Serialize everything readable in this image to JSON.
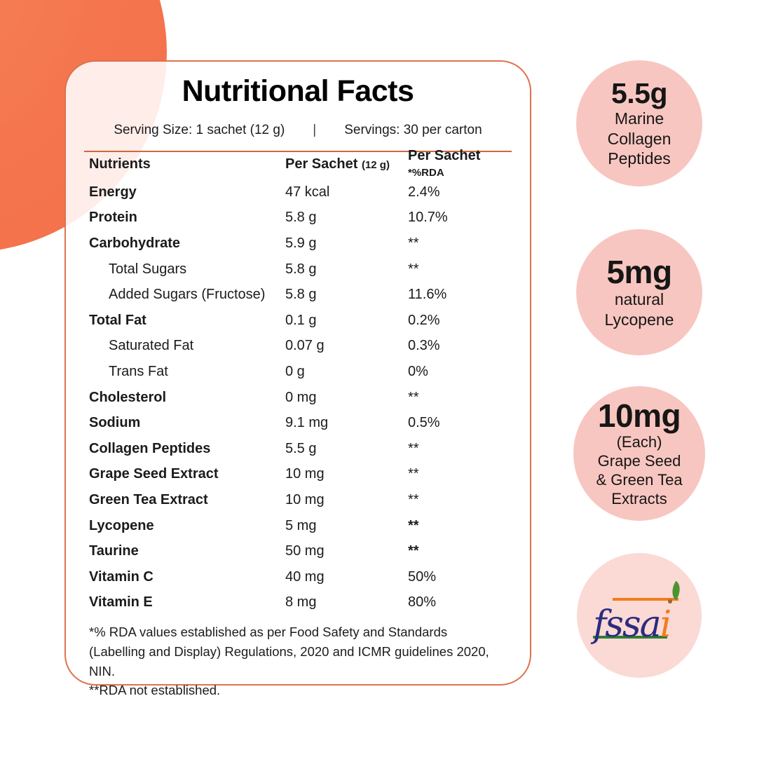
{
  "colors": {
    "accent_orange": "#f3714a",
    "card_border": "#dc7250",
    "divider": "#cc6745",
    "badge_pink": "#f8c6c0",
    "badge_pink_light": "#fbd9d4",
    "fssai_blue": "#2b2b80",
    "fssai_orange": "#f07d1f",
    "fssai_green": "#2f7d33"
  },
  "card": {
    "title": "Nutritional Facts",
    "serving_size": "Serving Size: 1 sachet (12 g)",
    "separator": "|",
    "servings": "Servings: 30 per carton",
    "table": {
      "headers": {
        "nutrients": "Nutrients",
        "amount_main": "Per Sachet",
        "amount_small": "(12 g)",
        "rda_main": "Per Sachet",
        "rda_small": "*%RDA"
      },
      "rows": [
        {
          "label": "Energy",
          "amount": "47 kcal",
          "rda": "2.4%",
          "sub": false,
          "rda_bold": false
        },
        {
          "label": "Protein",
          "amount": "5.8 g",
          "rda": "10.7%",
          "sub": false,
          "rda_bold": false
        },
        {
          "label": "Carbohydrate",
          "amount": "5.9 g",
          "rda": "**",
          "sub": false,
          "rda_bold": false
        },
        {
          "label": "Total Sugars",
          "amount": "5.8 g",
          "rda": "**",
          "sub": true,
          "rda_bold": false
        },
        {
          "label": "Added Sugars (Fructose)",
          "amount": "5.8 g",
          "rda": "11.6%",
          "sub": true,
          "rda_bold": false
        },
        {
          "label": "Total Fat",
          "amount": "0.1 g",
          "rda": "0.2%",
          "sub": false,
          "rda_bold": false
        },
        {
          "label": "Saturated Fat",
          "amount": "0.07 g",
          "rda": "0.3%",
          "sub": true,
          "rda_bold": false
        },
        {
          "label": "Trans Fat",
          "amount": "0 g",
          "rda": "0%",
          "sub": true,
          "rda_bold": false
        },
        {
          "label": "Cholesterol",
          "amount": "0 mg",
          "rda": "**",
          "sub": false,
          "rda_bold": false
        },
        {
          "label": "Sodium",
          "amount": "9.1 mg",
          "rda": "0.5%",
          "sub": false,
          "rda_bold": false
        },
        {
          "label": "Collagen Peptides",
          "amount": "5.5 g",
          "rda": "**",
          "sub": false,
          "rda_bold": false
        },
        {
          "label": "Grape Seed Extract",
          "amount": "10 mg",
          "rda": "**",
          "sub": false,
          "rda_bold": false
        },
        {
          "label": "Green Tea Extract",
          "amount": "10 mg",
          "rda": "**",
          "sub": false,
          "rda_bold": false
        },
        {
          "label": "Lycopene",
          "amount": "5 mg",
          "rda": "**",
          "sub": false,
          "rda_bold": true
        },
        {
          "label": "Taurine",
          "amount": "50 mg",
          "rda": "**",
          "sub": false,
          "rda_bold": true
        },
        {
          "label": "Vitamin C",
          "amount": "40 mg",
          "rda": "50%",
          "sub": false,
          "rda_bold": false
        },
        {
          "label": "Vitamin E",
          "amount": "8 mg",
          "rda": "80%",
          "sub": false,
          "rda_bold": false
        }
      ]
    },
    "footnote": "*% RDA values established as per Food Safety and Standards\n(Labelling and Display) Regulations, 2020 and ICMR guidelines 2020, NIN.\n**RDA not established."
  },
  "badges": [
    {
      "value": "5.5g",
      "lines": [
        "Marine",
        "Collagen",
        "Peptides"
      ]
    },
    {
      "value": "5mg",
      "lines": [
        "natural",
        "Lycopene"
      ]
    },
    {
      "value": "10mg",
      "lines": [
        "(Each)",
        "Grape Seed",
        "& Green Tea",
        "Extracts"
      ]
    }
  ],
  "fssai": {
    "part1": "fssa",
    "part2": "i"
  }
}
